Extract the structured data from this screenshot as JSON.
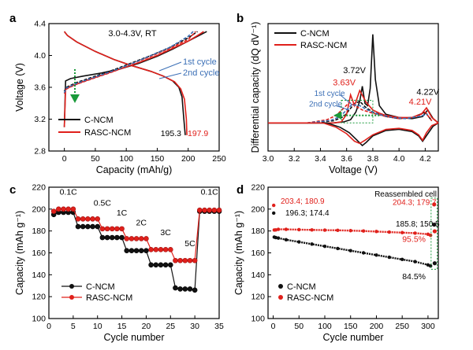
{
  "figure": {
    "colors": {
      "black": "#111111",
      "red": "#e0201b",
      "blue": "#3b6fb6",
      "green": "#1a9a3a"
    }
  },
  "chart_data": [
    {
      "panel": "a",
      "type": "line",
      "annotation": "3.0-4.3V, RT",
      "xlabel": "Capacity (mAh/g)",
      "ylabel": "Voltage (V)",
      "xlim": [
        -25,
        250
      ],
      "ylim": [
        2.8,
        4.4
      ],
      "xticks": [
        0,
        50,
        100,
        150,
        200,
        250
      ],
      "yticks": [
        2.8,
        3.2,
        3.6,
        4.0,
        4.4
      ],
      "ytick_labels": [
        "2.8",
        "3.2",
        "3.6",
        "4.0",
        "4.4"
      ],
      "cycle_labels": [
        "1st cycle",
        "2nd cycle"
      ],
      "end_capacity_labels": [
        "195.3",
        "197.9"
      ],
      "legend": {
        "placement": "bottom-left",
        "entries": [
          "C-NCM",
          "RASC-NCM"
        ]
      },
      "series": [
        {
          "name": "C-NCM",
          "cycle": 1,
          "kind": "charge",
          "color": "#111111",
          "dash": "solid",
          "x": [
            0,
            2,
            10,
            30,
            60,
            90,
            120,
            150,
            175,
            200,
            220,
            230
          ],
          "y": [
            3.1,
            3.68,
            3.71,
            3.74,
            3.78,
            3.83,
            3.9,
            3.99,
            4.08,
            4.18,
            4.26,
            4.3
          ]
        },
        {
          "name": "C-NCM",
          "cycle": 1,
          "kind": "discharge",
          "color": "#111111",
          "dash": "solid",
          "x": [
            0,
            5,
            20,
            50,
            80,
            110,
            140,
            160,
            175,
            185,
            190,
            193,
            195.3
          ],
          "y": [
            4.3,
            4.25,
            4.17,
            4.05,
            3.95,
            3.87,
            3.8,
            3.74,
            3.68,
            3.6,
            3.48,
            3.2,
            3.0
          ]
        },
        {
          "name": "C-NCM",
          "cycle": 2,
          "kind": "charge",
          "color": "#111111",
          "dash": "dashed",
          "x": [
            0,
            3,
            20,
            50,
            80,
            110,
            140,
            170,
            200,
            215
          ],
          "y": [
            3.55,
            3.6,
            3.66,
            3.74,
            3.82,
            3.91,
            4.0,
            4.1,
            4.22,
            4.3
          ]
        },
        {
          "name": "RASC-NCM",
          "cycle": 1,
          "kind": "charge",
          "color": "#e0201b",
          "dash": "solid",
          "x": [
            0,
            2,
            10,
            30,
            60,
            90,
            120,
            150,
            175,
            200,
            215,
            225
          ],
          "y": [
            3.1,
            3.57,
            3.61,
            3.67,
            3.75,
            3.83,
            3.91,
            4.0,
            4.09,
            4.18,
            4.25,
            4.3
          ]
        },
        {
          "name": "RASC-NCM",
          "cycle": 1,
          "kind": "discharge",
          "color": "#e0201b",
          "dash": "solid",
          "x": [
            0,
            5,
            20,
            50,
            80,
            110,
            140,
            160,
            178,
            188,
            194,
            197,
            197.9
          ],
          "y": [
            4.3,
            4.25,
            4.17,
            4.05,
            3.95,
            3.87,
            3.8,
            3.74,
            3.67,
            3.58,
            3.45,
            3.2,
            3.0
          ]
        },
        {
          "name": "RASC-NCM",
          "cycle": 2,
          "kind": "charge",
          "color": "#e0201b",
          "dash": "dashed",
          "x": [
            0,
            3,
            20,
            50,
            80,
            110,
            140,
            170,
            200,
            212
          ],
          "y": [
            3.52,
            3.58,
            3.64,
            3.72,
            3.8,
            3.9,
            3.99,
            4.09,
            4.2,
            4.3
          ]
        },
        {
          "name": "C-NCM",
          "cycle": 2,
          "kind": "charge",
          "color": "#3b6fb6",
          "dash": "dashed",
          "x": [
            0,
            3,
            20,
            50,
            80,
            110,
            140,
            170,
            200,
            208
          ],
          "y": [
            3.53,
            3.59,
            3.65,
            3.73,
            3.81,
            3.9,
            4.0,
            4.1,
            4.24,
            4.3
          ]
        }
      ]
    },
    {
      "panel": "b",
      "type": "line",
      "xlabel": "Voltage (V)",
      "ylabel": "Differential capacity (dQ dV⁻¹)",
      "xlim": [
        3.0,
        4.3
      ],
      "xticks": [
        3.0,
        3.2,
        3.4,
        3.6,
        3.8,
        4.0,
        4.2
      ],
      "xtick_labels": [
        "3.0",
        "3.2",
        "3.4",
        "3.6",
        "3.8",
        "4.0",
        "4.2"
      ],
      "ylim": [
        -1.3,
        4.6
      ],
      "peak_labels": [
        "3.72V",
        "3.63V",
        "4.22V",
        "4.21V"
      ],
      "cycle_labels": [
        "1st cycle",
        "2nd cycle"
      ],
      "legend": {
        "placement": "top-left",
        "entries": [
          "C-NCM",
          "RASC-NCM"
        ]
      },
      "series": [
        {
          "name": "C-NCM",
          "cycle": 1,
          "color": "#111111",
          "dash": "solid",
          "x": [
            3.0,
            3.5,
            3.58,
            3.63,
            3.67,
            3.7,
            3.72,
            3.74,
            3.76,
            3.78,
            3.8,
            3.82,
            3.85,
            3.9,
            4.0,
            4.1,
            4.18,
            4.22,
            4.26,
            4.3
          ],
          "y": [
            0,
            0,
            0.05,
            0.15,
            0.5,
            1.0,
            1.7,
            0.9,
            0.8,
            1.6,
            4.1,
            2.0,
            0.8,
            0.4,
            0.25,
            0.2,
            0.3,
            0.6,
            0.2,
            0.0
          ]
        },
        {
          "name": "C-NCM",
          "cycle": 2,
          "color": "#111111",
          "dash": "dashed",
          "x": [
            3.3,
            3.5,
            3.58,
            3.62,
            3.66,
            3.7,
            3.74,
            3.8,
            3.9,
            4.0,
            4.1,
            4.2,
            4.25
          ],
          "y": [
            0,
            0.1,
            0.3,
            0.6,
            0.9,
            1.0,
            0.75,
            0.5,
            0.3,
            0.2,
            0.25,
            0.5,
            0.1
          ]
        },
        {
          "name": "RASC-NCM",
          "cycle": 1,
          "color": "#e0201b",
          "dash": "solid",
          "x": [
            3.0,
            3.5,
            3.56,
            3.6,
            3.63,
            3.66,
            3.7,
            3.75,
            3.8,
            3.85,
            3.9,
            4.0,
            4.1,
            4.17,
            4.21,
            4.25,
            4.3
          ],
          "y": [
            0,
            0,
            0.05,
            0.4,
            1.3,
            0.8,
            1.5,
            0.95,
            0.6,
            0.45,
            0.35,
            0.25,
            0.25,
            0.4,
            0.7,
            0.25,
            0.0
          ]
        },
        {
          "name": "RASC-NCM",
          "cycle": 2,
          "color": "#e0201b",
          "dash": "dashed",
          "x": [
            3.3,
            3.45,
            3.52,
            3.58,
            3.62,
            3.66,
            3.72,
            3.8,
            3.9,
            4.0,
            4.1,
            4.2,
            4.25
          ],
          "y": [
            0,
            0.15,
            0.35,
            0.7,
            0.95,
            0.8,
            0.6,
            0.45,
            0.3,
            0.2,
            0.25,
            0.5,
            0.1
          ]
        },
        {
          "name": "C-NCM",
          "cycle": 2,
          "color": "#3b6fb6",
          "dash": "dashed",
          "x": [
            3.3,
            3.48,
            3.55,
            3.6,
            3.64,
            3.7,
            3.76,
            3.84,
            3.95,
            4.05,
            4.15,
            4.22
          ],
          "y": [
            0,
            0.12,
            0.3,
            0.6,
            0.85,
            0.8,
            0.6,
            0.4,
            0.25,
            0.2,
            0.3,
            0.4
          ]
        },
        {
          "name": "C-NCM",
          "kind": "discharge",
          "color": "#111111",
          "dash": "solid",
          "x": [
            3.0,
            3.45,
            3.55,
            3.62,
            3.68,
            3.72,
            3.75,
            3.8,
            3.9,
            4.0,
            4.1,
            4.15,
            4.18,
            4.22,
            4.26,
            4.3
          ],
          "y": [
            0,
            0,
            -0.2,
            -0.45,
            -0.8,
            -1.05,
            -0.9,
            -0.6,
            -0.35,
            -0.3,
            -0.4,
            -0.6,
            -0.85,
            -0.5,
            -0.15,
            0
          ]
        },
        {
          "name": "RASC-NCM",
          "kind": "discharge",
          "color": "#e0201b",
          "dash": "solid",
          "x": [
            3.0,
            3.42,
            3.52,
            3.6,
            3.66,
            3.7,
            3.74,
            3.8,
            3.9,
            4.0,
            4.1,
            4.15,
            4.18,
            4.21,
            4.25,
            4.3
          ],
          "y": [
            0,
            0,
            -0.2,
            -0.5,
            -0.85,
            -0.95,
            -0.8,
            -0.55,
            -0.3,
            -0.25,
            -0.35,
            -0.55,
            -0.8,
            -0.45,
            -0.12,
            0
          ]
        }
      ]
    },
    {
      "panel": "c",
      "type": "scatter",
      "xlabel": "Cycle number",
      "ylabel": "Capacity (mAh g⁻¹)",
      "xlim": [
        0,
        35
      ],
      "ylim": [
        100,
        220
      ],
      "xticks": [
        0,
        5,
        10,
        15,
        20,
        25,
        30,
        35
      ],
      "yticks": [
        100,
        120,
        140,
        160,
        180,
        200,
        220
      ],
      "rate_labels": [
        "0.1C",
        "0.5C",
        "1C",
        "2C",
        "3C",
        "5C",
        "0.1C"
      ],
      "legend": {
        "placement": "bottom-left",
        "entries": [
          "C-NCM",
          "RASC-NCM"
        ]
      },
      "series": [
        {
          "name": "C-NCM",
          "color": "#111111",
          "x": [
            1,
            2,
            3,
            4,
            5,
            6,
            7,
            8,
            9,
            10,
            11,
            12,
            13,
            14,
            15,
            16,
            17,
            18,
            19,
            20,
            21,
            22,
            23,
            24,
            25,
            26,
            27,
            28,
            29,
            30,
            31,
            32,
            33,
            34,
            35
          ],
          "y": [
            195,
            197,
            197,
            197,
            197,
            184,
            184,
            184,
            184,
            184,
            174,
            174,
            174,
            174,
            174,
            162,
            162,
            162,
            162,
            162,
            149,
            149,
            149,
            149,
            149,
            128,
            127,
            127,
            127,
            126,
            198,
            198,
            198,
            198,
            198
          ]
        },
        {
          "name": "RASC-NCM",
          "color": "#e0201b",
          "x": [
            1,
            2,
            3,
            4,
            5,
            6,
            7,
            8,
            9,
            10,
            11,
            12,
            13,
            14,
            15,
            16,
            17,
            18,
            19,
            20,
            21,
            22,
            23,
            24,
            25,
            26,
            27,
            28,
            29,
            30,
            31,
            32,
            33,
            34,
            35
          ],
          "y": [
            198,
            200,
            200,
            200,
            200,
            191,
            191,
            191,
            191,
            191,
            182,
            182,
            182,
            182,
            182,
            173,
            173,
            173,
            173,
            173,
            163,
            163,
            163,
            163,
            163,
            153,
            153,
            153,
            153,
            153,
            199,
            199,
            199,
            199,
            199
          ]
        }
      ]
    },
    {
      "panel": "d",
      "type": "scatter",
      "xlabel": "Cycle number",
      "ylabel": "Capacity (mAh g⁻¹)",
      "xlim": [
        -10,
        320
      ],
      "ylim": [
        100,
        220
      ],
      "xticks": [
        0,
        50,
        100,
        150,
        200,
        250,
        300
      ],
      "yticks": [
        100,
        120,
        140,
        160,
        180,
        200,
        220
      ],
      "value_labels": [
        "203.4; 180.9",
        "196.3; 174.4",
        "204.3; 179.7",
        "185.8; 150.5",
        "95.5%",
        "84.5%"
      ],
      "inset_label": "Reassembled cell",
      "legend": {
        "placement": "bottom-left",
        "entries": [
          "C-NCM",
          "RASC-NCM"
        ]
      },
      "series": [
        {
          "name": "C-NCM",
          "color": "#111111",
          "x": [
            1,
            2,
            5,
            10,
            25,
            50,
            75,
            100,
            125,
            150,
            175,
            200,
            225,
            250,
            275,
            300,
            305
          ],
          "y": [
            196.3,
            174.4,
            174,
            173.5,
            172,
            170,
            168,
            166,
            164,
            162,
            160,
            158,
            156,
            154,
            152,
            149,
            148
          ]
        },
        {
          "name": "RASC-NCM",
          "color": "#e0201b",
          "x": [
            1,
            2,
            5,
            10,
            25,
            50,
            75,
            100,
            125,
            150,
            175,
            200,
            225,
            250,
            275,
            300,
            305
          ],
          "y": [
            203.4,
            180.9,
            181,
            181.5,
            181.5,
            181.2,
            181,
            180.8,
            180.6,
            180.3,
            180,
            179.5,
            179,
            178.5,
            178,
            177,
            176
          ]
        },
        {
          "name": "C-NCM",
          "kind": "reassembled",
          "color": "#111111",
          "x": [
            312,
            313
          ],
          "y": [
            185.8,
            150.5
          ]
        },
        {
          "name": "RASC-NCM",
          "kind": "reassembled",
          "color": "#e0201b",
          "x": [
            312,
            313
          ],
          "y": [
            204.3,
            179.7
          ]
        }
      ]
    }
  ]
}
